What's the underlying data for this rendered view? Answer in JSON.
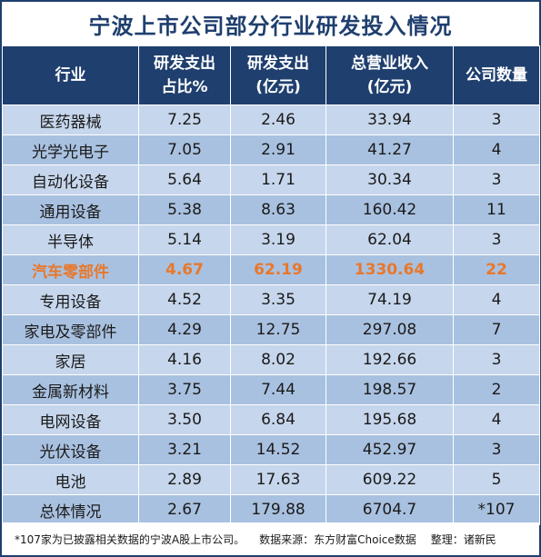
{
  "title": "宁波上市公司部分行业研发投入情况",
  "header": {
    "col1": "行业",
    "col2_line1": "研发支出",
    "col2_line2": "占比%",
    "col3_line1": "研发支出",
    "col3_line2": "(亿元)",
    "col4_line1": "总营业收入",
    "col4_line2": "(亿元)",
    "col5": "公司数量"
  },
  "rows": [
    {
      "industry": "医药器械",
      "ratio": "7.25",
      "rd": "2.46",
      "revenue": "33.94",
      "count": "3"
    },
    {
      "industry": "光学光电子",
      "ratio": "7.05",
      "rd": "2.91",
      "revenue": "41.27",
      "count": "4"
    },
    {
      "industry": "自动化设备",
      "ratio": "5.64",
      "rd": "1.71",
      "revenue": "30.34",
      "count": "3"
    },
    {
      "industry": "通用设备",
      "ratio": "5.38",
      "rd": "8.63",
      "revenue": "160.42",
      "count": "11"
    },
    {
      "industry": "半导体",
      "ratio": "5.14",
      "rd": "3.19",
      "revenue": "62.04",
      "count": "3"
    },
    {
      "industry": "汽车零部件",
      "ratio": "4.67",
      "rd": "62.19",
      "revenue": "1330.64",
      "count": "22"
    },
    {
      "industry": "专用设备",
      "ratio": "4.52",
      "rd": "3.35",
      "revenue": "74.19",
      "count": "4"
    },
    {
      "industry": "家电及零部件",
      "ratio": "4.29",
      "rd": "12.75",
      "revenue": "297.08",
      "count": "7"
    },
    {
      "industry": "家居",
      "ratio": "4.16",
      "rd": "8.02",
      "revenue": "192.66",
      "count": "3"
    },
    {
      "industry": "金属新材料",
      "ratio": "3.75",
      "rd": "7.44",
      "revenue": "198.57",
      "count": "2"
    },
    {
      "industry": "电网设备",
      "ratio": "3.50",
      "rd": "6.84",
      "revenue": "195.68",
      "count": "4"
    },
    {
      "industry": "光伏设备",
      "ratio": "3.21",
      "rd": "14.52",
      "revenue": "452.97",
      "count": "3"
    },
    {
      "industry": "电池",
      "ratio": "2.89",
      "rd": "17.63",
      "revenue": "609.22",
      "count": "5"
    },
    {
      "industry": "总体情况",
      "ratio": "2.67",
      "rd": "179.88",
      "revenue": "6704.7",
      "count": "*107"
    }
  ],
  "footnote": {
    "note": "*107家为已披露相关数据的宁波A股上市公司。",
    "source": "数据来源：东方财富Choice数据",
    "editor": "整理：诸新民"
  },
  "colors": {
    "header_bg": "#1f3f6e",
    "row_light": "#c6d6ec",
    "row_dark": "#a9c1e0",
    "highlight_text": "#e8782c"
  }
}
